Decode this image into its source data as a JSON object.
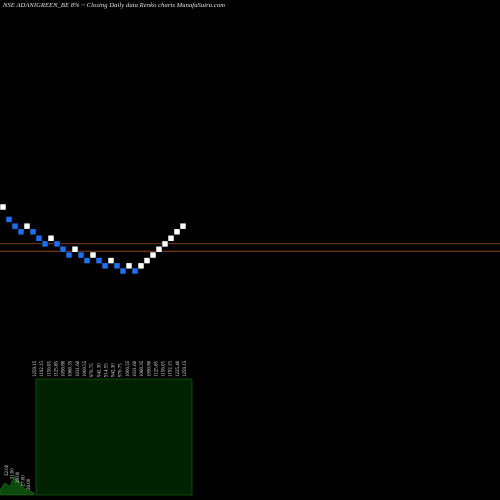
{
  "title": "NSE ADANIGREEN_BE 8% ~ Closing Daily data Renko charts MunafaSutra.com",
  "chart_data": {
    "type": "renko",
    "title": "NSE ADANIGREEN_BE 8% ~ Closing Daily data Renko charts MunafaSutra.com",
    "bricks": [
      {
        "level": 1259.15,
        "direction": "up"
      },
      {
        "level": 1192.15,
        "direction": "down"
      },
      {
        "level": 1156.05,
        "direction": "down"
      },
      {
        "level": 1125.65,
        "direction": "down"
      },
      {
        "level": 1156.05,
        "direction": "up"
      },
      {
        "level": 1125.65,
        "direction": "down"
      },
      {
        "level": 1090.8,
        "direction": "down"
      },
      {
        "level": 1060.35,
        "direction": "down"
      },
      {
        "level": 1090.8,
        "direction": "up"
      },
      {
        "level": 1060.35,
        "direction": "down"
      },
      {
        "level": 1031.6,
        "direction": "down"
      },
      {
        "level": 1000.55,
        "direction": "down"
      },
      {
        "level": 1031.6,
        "direction": "up"
      },
      {
        "level": 1000.55,
        "direction": "down"
      },
      {
        "level": 970.75,
        "direction": "down"
      },
      {
        "level": 1000.55,
        "direction": "up"
      },
      {
        "level": 970.75,
        "direction": "down"
      },
      {
        "level": 942.3,
        "direction": "down"
      },
      {
        "level": 970.75,
        "direction": "up"
      },
      {
        "level": 942.3,
        "direction": "down"
      },
      {
        "level": 914.55,
        "direction": "down"
      },
      {
        "level": 942.3,
        "direction": "up"
      },
      {
        "level": 914.55,
        "direction": "down"
      },
      {
        "level": 942.3,
        "direction": "up"
      },
      {
        "level": 970.75,
        "direction": "up"
      },
      {
        "level": 1000.55,
        "direction": "up"
      },
      {
        "level": 1031.6,
        "direction": "up"
      },
      {
        "level": 1060.35,
        "direction": "up"
      },
      {
        "level": 1090.8,
        "direction": "up"
      },
      {
        "level": 1125.65,
        "direction": "up"
      },
      {
        "level": 1156.05,
        "direction": "up"
      }
    ],
    "reference_levels": [
      1045.0,
      1005.0
    ],
    "price_labels": [
      "1259.15",
      "1192.15",
      "1156.05",
      "1125.65",
      "1090.80",
      "1060.35",
      "1031.60",
      "1000.55",
      "970.75",
      "942.30",
      "914.55",
      "942.30",
      "970.75",
      "1000.55",
      "1031.60",
      "1060.35",
      "1090.80",
      "1125.65",
      "1156.05",
      "1192.15",
      "1225.40",
      "1259.15"
    ],
    "volume_labels": [
      "32.00",
      "31.00",
      "29.00",
      "27.00",
      "26.00"
    ],
    "volume_area": [
      0.25,
      0.55,
      0.4,
      0.85,
      0.6,
      0.3,
      0.2,
      0.1
    ],
    "colors": {
      "background": "#000000",
      "up_brick": "#ffffff",
      "down_brick": "#1e6ff0",
      "brick_edge": "#000000",
      "reference_line": "#a0522d",
      "volume_panel": "#002200",
      "volume_border": "#0a5a0a",
      "volume_area": "#0c4a0c",
      "text": "#e0e0e0"
    },
    "grid": false,
    "legend": "none"
  }
}
